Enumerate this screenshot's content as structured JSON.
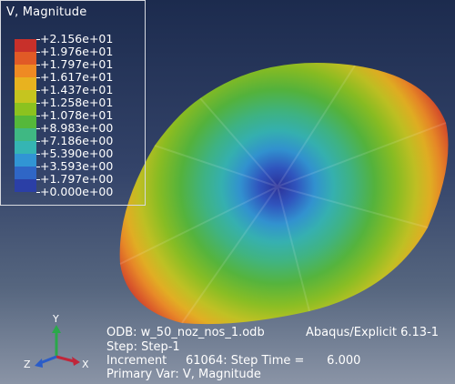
{
  "legend": {
    "title": "V, Magnitude",
    "colors": [
      "#c8302a",
      "#e15a26",
      "#ef8a23",
      "#e8b21f",
      "#c5c51f",
      "#8cc21f",
      "#55b83a",
      "#3fb883",
      "#35b5b3",
      "#3195d4",
      "#2f66c6",
      "#2b3fa6"
    ],
    "labels": [
      "+2.156e+01",
      "+1.976e+01",
      "+1.797e+01",
      "+1.617e+01",
      "+1.437e+01",
      "+1.258e+01",
      "+1.078e+01",
      "+8.983e+00",
      "+7.186e+00",
      "+5.390e+00",
      "+3.593e+00",
      "+1.797e+00",
      "+0.000e+00"
    ]
  },
  "info": {
    "odb_label": "ODB: w_50_noz_nos_1.odb",
    "solver_label": "Abaqus/Explicit 6.13-1",
    "step_line": "Step: Step-1",
    "increment_line": "Increment     61064: Step Time =      6.000",
    "primary_var_line": "Primary Var: V, Magnitude"
  },
  "triad": {
    "y_label": "Y",
    "z_label": "Z",
    "x_label": "X",
    "y_color": "#2aa84a",
    "x_color": "#c0263a",
    "z_color": "#2a5cc8"
  }
}
